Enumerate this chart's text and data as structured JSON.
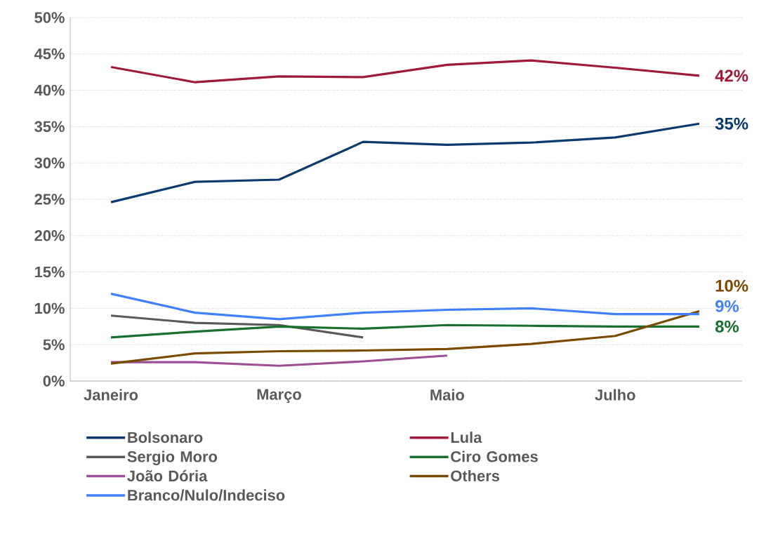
{
  "chart_data": {
    "type": "line",
    "categories": [
      "Janeiro",
      null,
      "Março",
      null,
      "Maio",
      null,
      "Julho",
      null
    ],
    "series": [
      {
        "name": "Bolsonaro",
        "color": "#0b3a6e",
        "values": [
          24.6,
          27.4,
          27.7,
          32.9,
          32.5,
          32.8,
          33.5,
          35.4
        ],
        "value_labels": [
          null,
          null,
          null,
          null,
          null,
          null,
          null,
          "35%"
        ]
      },
      {
        "name": "Lula",
        "color": "#a0193a",
        "values": [
          43.2,
          41.1,
          41.9,
          41.8,
          43.5,
          44.1,
          43.1,
          42.0
        ],
        "value_labels": [
          null,
          null,
          null,
          null,
          null,
          null,
          null,
          "42%"
        ]
      },
      {
        "name": "Sergio Moro",
        "color": "#595959",
        "values": [
          9.0,
          8.0,
          7.7,
          6.0,
          null,
          null,
          null,
          null
        ]
      },
      {
        "name": "Ciro Gomes",
        "color": "#1a6e2e",
        "values": [
          6.0,
          6.8,
          7.5,
          7.2,
          7.7,
          7.6,
          7.5,
          7.5
        ],
        "value_labels": [
          null,
          null,
          null,
          null,
          null,
          null,
          null,
          "8%"
        ]
      },
      {
        "name": "João Dória",
        "color": "#9b4f96",
        "values": [
          2.6,
          2.6,
          2.1,
          2.7,
          3.5,
          null,
          null,
          null
        ]
      },
      {
        "name": "Others",
        "color": "#7a4a00",
        "values": [
          2.4,
          3.8,
          4.1,
          4.2,
          4.4,
          5.1,
          6.2,
          9.6
        ],
        "value_labels": [
          null,
          null,
          null,
          null,
          null,
          null,
          null,
          "10%"
        ]
      },
      {
        "name": "Branco/Nulo/Indeciso",
        "color": "#4080ff",
        "values": [
          12.0,
          9.4,
          8.5,
          9.4,
          9.8,
          10.0,
          9.2,
          9.2
        ],
        "value_labels": [
          null,
          null,
          null,
          null,
          null,
          null,
          null,
          "9%"
        ]
      }
    ],
    "ylim": [
      0,
      50
    ],
    "yticks": [
      {
        "value": 0,
        "label": "0%"
      },
      {
        "value": 5,
        "label": "5%"
      },
      {
        "value": 10,
        "label": "10%"
      },
      {
        "value": 15,
        "label": "15%"
      },
      {
        "value": 20,
        "label": "20%"
      },
      {
        "value": 25,
        "label": "25%"
      },
      {
        "value": 30,
        "label": "30%"
      },
      {
        "value": 35,
        "label": "35%"
      },
      {
        "value": 40,
        "label": "40%"
      },
      {
        "value": 45,
        "label": "45%"
      },
      {
        "value": 50,
        "label": "50%"
      }
    ],
    "grid": "y",
    "legend": "bottom",
    "line_style": "solid",
    "marker": "none"
  }
}
